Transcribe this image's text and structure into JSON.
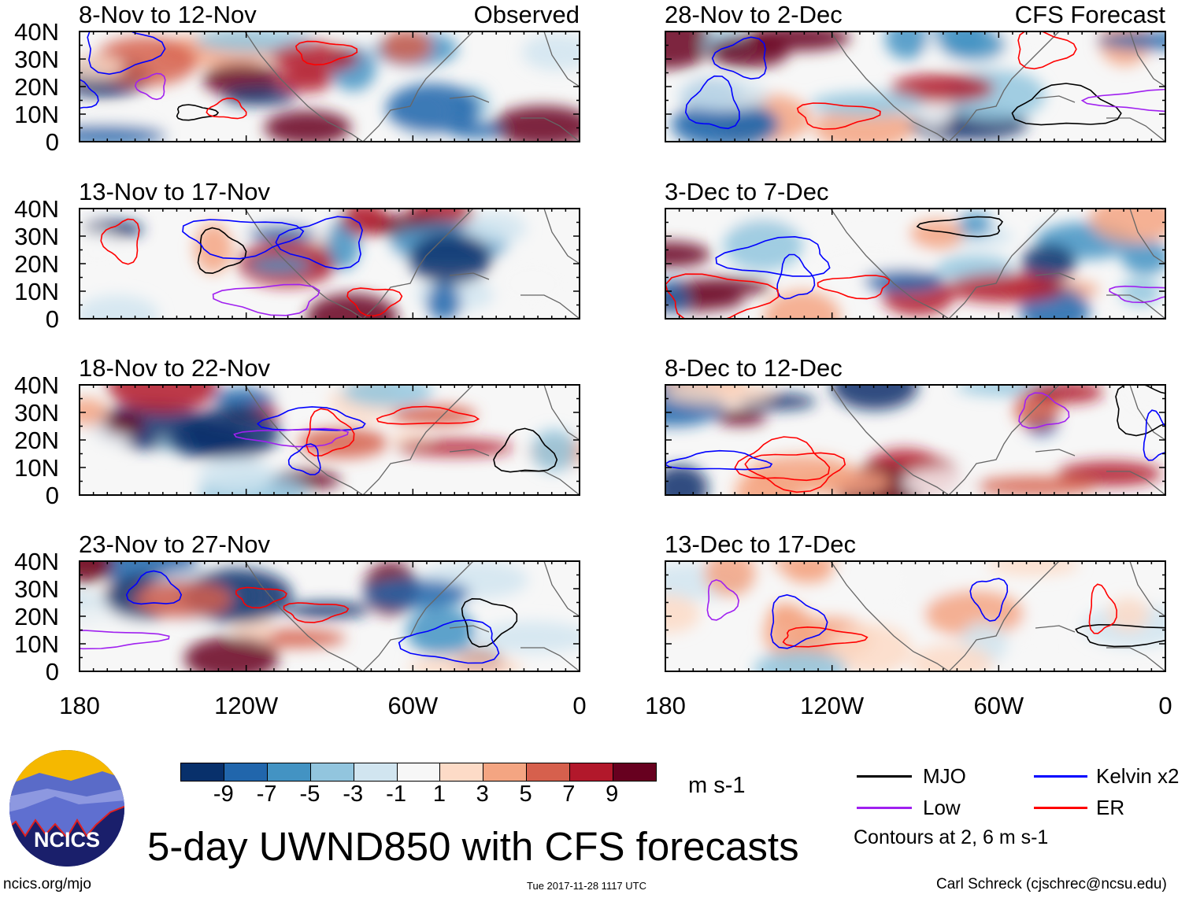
{
  "panels": {
    "left": [
      {
        "title": "8-Nov to 12-Nov",
        "tag": "Observed"
      },
      {
        "title": "13-Nov to 17-Nov",
        "tag": ""
      },
      {
        "title": "18-Nov to 22-Nov",
        "tag": ""
      },
      {
        "title": "23-Nov to 27-Nov",
        "tag": ""
      }
    ],
    "right": [
      {
        "title": "28-Nov to 2-Dec",
        "tag": "CFS Forecast"
      },
      {
        "title": "3-Dec to 7-Dec",
        "tag": ""
      },
      {
        "title": "8-Dec to 12-Dec",
        "tag": ""
      },
      {
        "title": "13-Dec to 17-Dec",
        "tag": ""
      }
    ]
  },
  "axes": {
    "lat_labels": [
      "40N",
      "30N",
      "20N",
      "10N",
      "0"
    ],
    "lon_labels": [
      "180",
      "120W",
      "60W",
      "0"
    ]
  },
  "colorbar": {
    "labels": [
      "-9",
      "-7",
      "-5",
      "-3",
      "-1",
      "1",
      "3",
      "5",
      "7",
      "9"
    ],
    "colors": [
      "#08306b",
      "#2166ac",
      "#4393c3",
      "#92c5de",
      "#d1e5f0",
      "#f7f7f7",
      "#fddbc7",
      "#f4a582",
      "#d6604d",
      "#b2182b",
      "#67001f"
    ],
    "units": "m s-1"
  },
  "legend": {
    "items": [
      {
        "label": "MJO",
        "color": "#000000"
      },
      {
        "label": "Kelvin x2",
        "color": "#0000ff"
      },
      {
        "label": "Low",
        "color": "#a020f0"
      },
      {
        "label": "ER",
        "color": "#ff0000"
      }
    ],
    "note": "Contours at 2, 6 m s-1"
  },
  "logo": {
    "text": "NCICS"
  },
  "title": "5-day UWND850 with CFS forecasts",
  "footer": {
    "url": "ncics.org/mjo",
    "timestamp": "Tue 2017-11-28 1117 UTC",
    "credit": "Carl Schreck (cjschrec@ncsu.edu)"
  }
}
